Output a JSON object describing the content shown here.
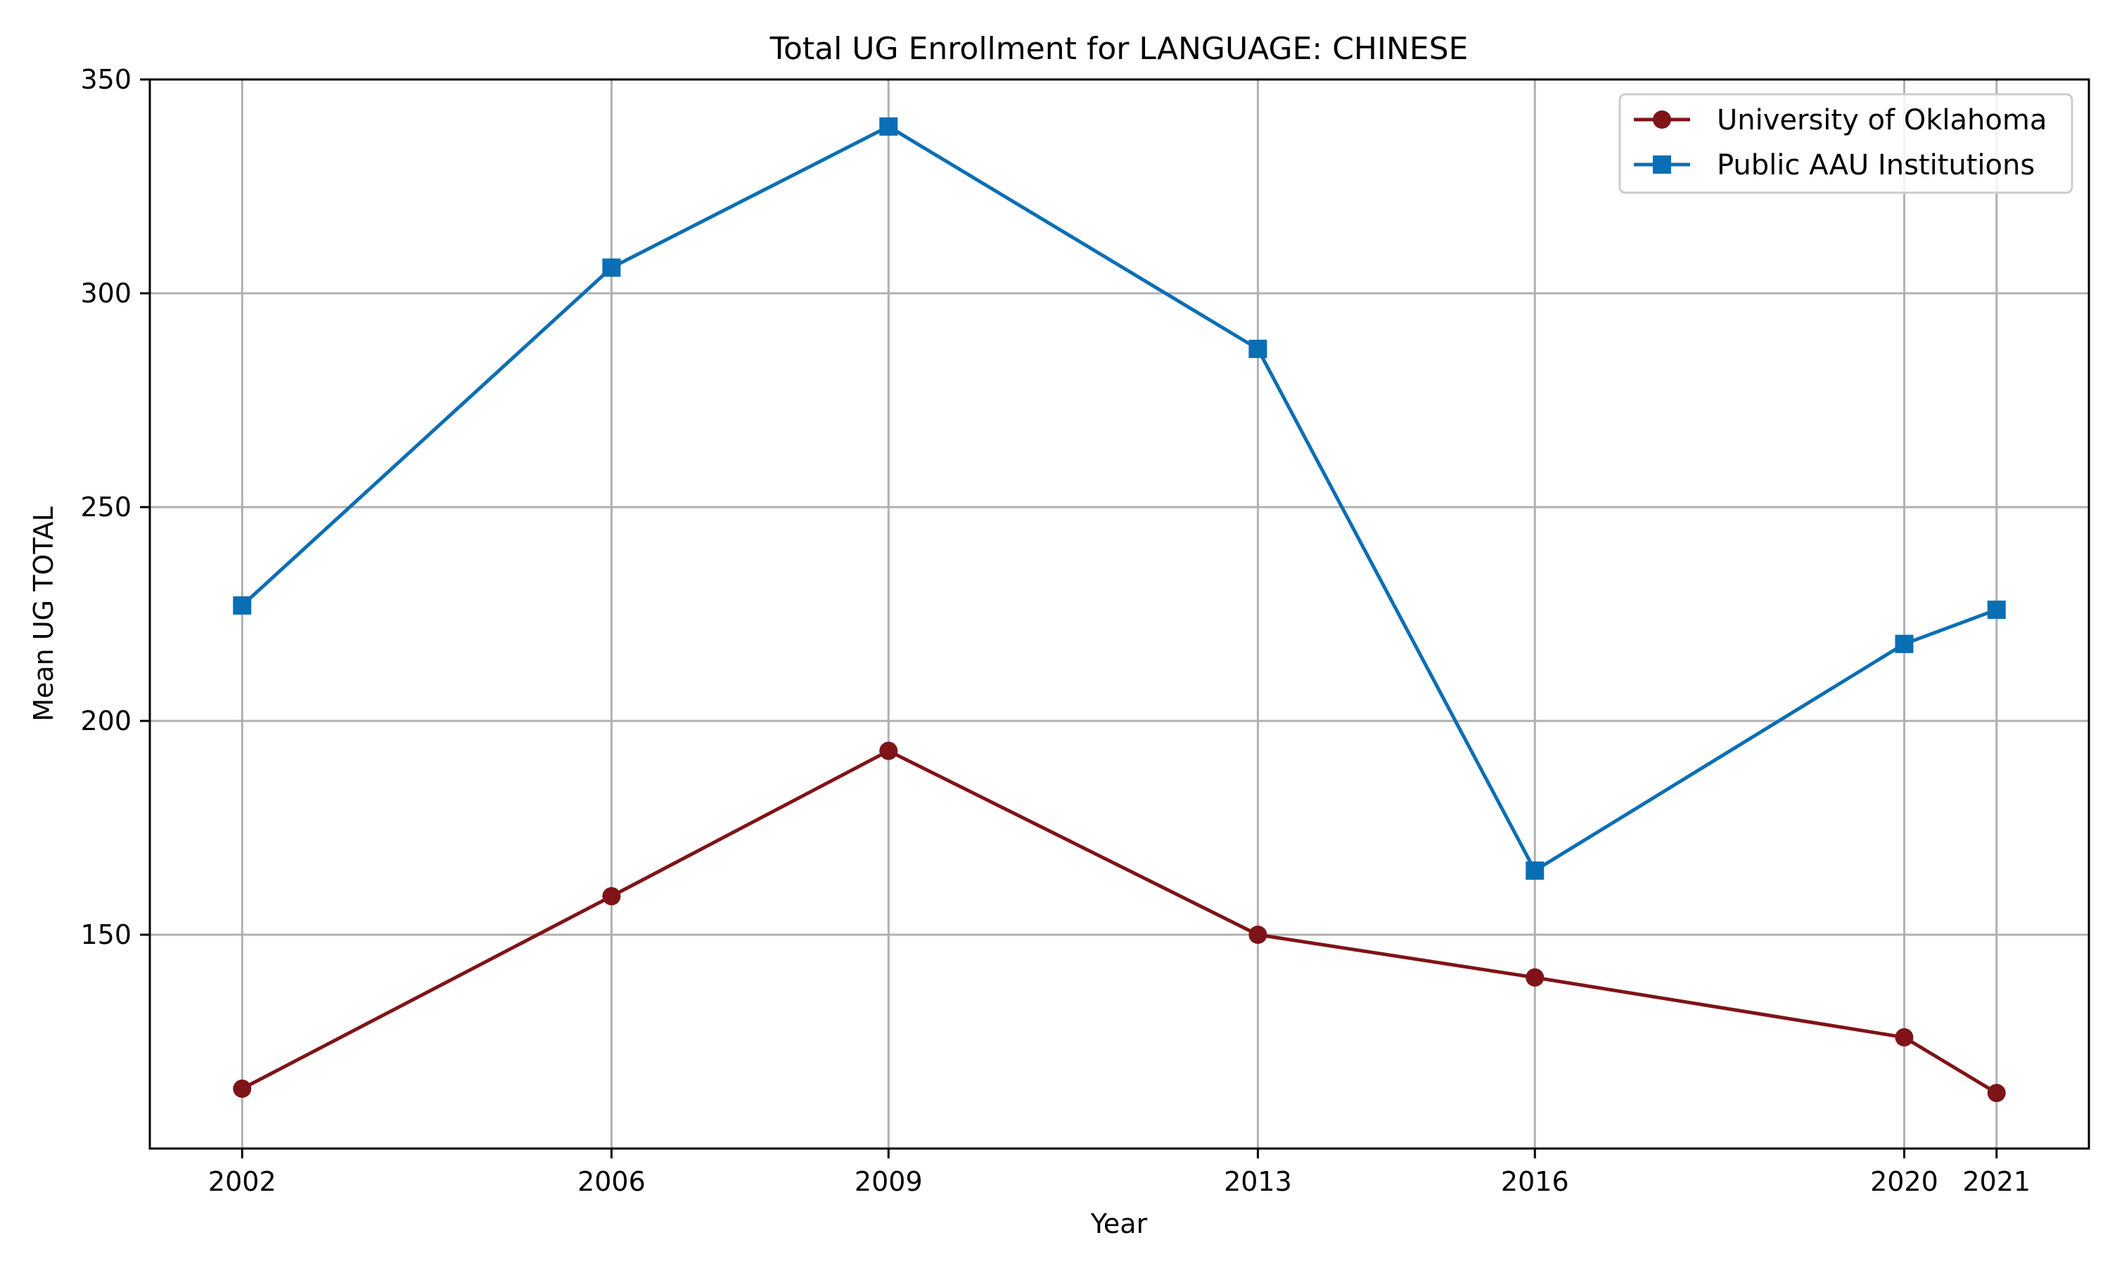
{
  "chart_data": {
    "type": "line",
    "title": "Total UG Enrollment for LANGUAGE: CHINESE",
    "xlabel": "Year",
    "ylabel": "Mean UG TOTAL",
    "x": [
      2002,
      2006,
      2009,
      2013,
      2016,
      2020,
      2021
    ],
    "xlim": [
      2001,
      2022
    ],
    "ylim": [
      100,
      350
    ],
    "yticks": [
      150,
      200,
      250,
      300,
      350
    ],
    "grid": true,
    "legend_position": "top-right",
    "series": [
      {
        "name": "University of Oklahoma",
        "color": "#7f1418",
        "marker": "circle",
        "values": [
          114,
          159,
          193,
          150,
          140,
          126,
          113
        ]
      },
      {
        "name": "Public AAU Institutions",
        "color": "#0a6eb4",
        "marker": "square",
        "values": [
          227,
          306,
          339,
          287,
          165,
          218,
          226
        ]
      }
    ]
  }
}
